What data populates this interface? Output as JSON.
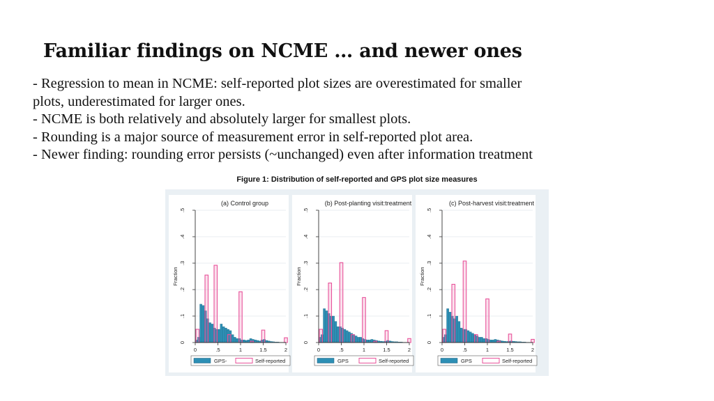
{
  "slide": {
    "title": "Familiar findings on NCME … and newer ones",
    "bullets": [
      "- Regression to mean in NCME: self-reported plot sizes are overestimated for smaller",
      "plots, underestimated for larger ones.",
      "- NCME is both relatively and absolutely larger for smallest plots.",
      "- Rounding is a major source of measurement error in self-reported plot area.",
      "- Newer finding: rounding error persists (~unchanged) even after information treatment"
    ],
    "figure_caption": "Figure 1: Distribution of self-reported and GPS plot size measures"
  },
  "chart_data": [
    {
      "type": "bar",
      "title": "(a) Control group",
      "ylabel": "Fraction",
      "xlim": [
        0,
        2
      ],
      "ylim": [
        0,
        0.5
      ],
      "xticks": [
        "0",
        ".5",
        "1",
        "1.5",
        "2"
      ],
      "yticks": [
        "0",
        ".1",
        ".2",
        ".3",
        ".4",
        ".5"
      ],
      "colors": {
        "GPS": "#2d8fb5",
        "Self-reported": "#e8529a"
      },
      "series": [
        {
          "name": "GPS-",
          "bin_width": 0.05,
          "x_start": 0,
          "values": [
            0.01,
            0.02,
            0.145,
            0.14,
            0.12,
            0.09,
            0.075,
            0.07,
            0.055,
            0.05,
            0.05,
            0.07,
            0.06,
            0.055,
            0.05,
            0.045,
            0.03,
            0.02,
            0.015,
            0.015,
            0.01,
            0.01,
            0.008,
            0.01,
            0.015,
            0.012,
            0.01,
            0.008,
            0.006,
            0.01,
            0.012,
            0.008,
            0.006,
            0.004,
            0.003,
            0.002,
            0.002,
            0.001,
            0.001,
            0.001
          ]
        },
        {
          "name": "Self-reported",
          "bars": [
            {
              "x": 0.05,
              "y": 0.05
            },
            {
              "x": 0.25,
              "y": 0.255
            },
            {
              "x": 0.45,
              "y": 0.292
            },
            {
              "x": 0.75,
              "y": 0.03
            },
            {
              "x": 1.0,
              "y": 0.192
            },
            {
              "x": 1.25,
              "y": 0.005
            },
            {
              "x": 1.5,
              "y": 0.047
            },
            {
              "x": 2.0,
              "y": 0.018
            }
          ]
        }
      ]
    },
    {
      "type": "bar",
      "title": "(b) Post-planting visit:treatment",
      "ylabel": "Fraction",
      "xlim": [
        0,
        2
      ],
      "ylim": [
        0,
        0.5
      ],
      "xticks": [
        "0",
        ".5",
        "1",
        "1.5",
        "2"
      ],
      "yticks": [
        "0",
        ".1",
        ".2",
        ".3",
        ".4",
        ".5"
      ],
      "colors": {
        "GPS": "#2d8fb5",
        "Self-reported": "#e8529a"
      },
      "series": [
        {
          "name": "GPS",
          "bin_width": 0.05,
          "x_start": 0,
          "values": [
            0.02,
            0.03,
            0.128,
            0.12,
            0.11,
            0.1,
            0.1,
            0.08,
            0.06,
            0.06,
            0.055,
            0.05,
            0.045,
            0.04,
            0.035,
            0.03,
            0.025,
            0.02,
            0.02,
            0.015,
            0.012,
            0.01,
            0.01,
            0.012,
            0.01,
            0.008,
            0.006,
            0.005,
            0.004,
            0.005,
            0.008,
            0.006,
            0.004,
            0.003,
            0.003,
            0.002,
            0.002,
            0.001,
            0.001,
            0.001
          ]
        },
        {
          "name": "Self-reported",
          "bars": [
            {
              "x": 0.05,
              "y": 0.05
            },
            {
              "x": 0.25,
              "y": 0.225
            },
            {
              "x": 0.5,
              "y": 0.302
            },
            {
              "x": 0.75,
              "y": 0.03
            },
            {
              "x": 1.0,
              "y": 0.17
            },
            {
              "x": 1.25,
              "y": 0.005
            },
            {
              "x": 1.5,
              "y": 0.045
            },
            {
              "x": 2.0,
              "y": 0.015
            }
          ]
        }
      ]
    },
    {
      "type": "bar",
      "title": "(c) Post-harvest visit:treatment",
      "ylabel": "Fraction",
      "xlim": [
        0,
        2
      ],
      "ylim": [
        0,
        0.5
      ],
      "xticks": [
        "0",
        ".5",
        "1",
        "1.5",
        "2"
      ],
      "yticks": [
        "0",
        ".1",
        ".2",
        ".3",
        ".4",
        ".5"
      ],
      "colors": {
        "GPS": "#2d8fb5",
        "Self-reported": "#e8529a"
      },
      "series": [
        {
          "name": "GPS",
          "bin_width": 0.05,
          "x_start": 0,
          "values": [
            0.02,
            0.03,
            0.128,
            0.115,
            0.1,
            0.09,
            0.1,
            0.08,
            0.055,
            0.05,
            0.05,
            0.045,
            0.04,
            0.035,
            0.03,
            0.025,
            0.02,
            0.02,
            0.015,
            0.015,
            0.012,
            0.01,
            0.01,
            0.012,
            0.01,
            0.008,
            0.006,
            0.005,
            0.004,
            0.005,
            0.006,
            0.005,
            0.004,
            0.003,
            0.003,
            0.002,
            0.002,
            0.001,
            0.001,
            0.001
          ]
        },
        {
          "name": "Self-reported",
          "bars": [
            {
              "x": 0.05,
              "y": 0.05
            },
            {
              "x": 0.25,
              "y": 0.22
            },
            {
              "x": 0.5,
              "y": 0.308
            },
            {
              "x": 0.75,
              "y": 0.03
            },
            {
              "x": 1.0,
              "y": 0.165
            },
            {
              "x": 1.25,
              "y": 0.005
            },
            {
              "x": 1.5,
              "y": 0.032
            },
            {
              "x": 2.0,
              "y": 0.012
            }
          ]
        }
      ]
    }
  ]
}
